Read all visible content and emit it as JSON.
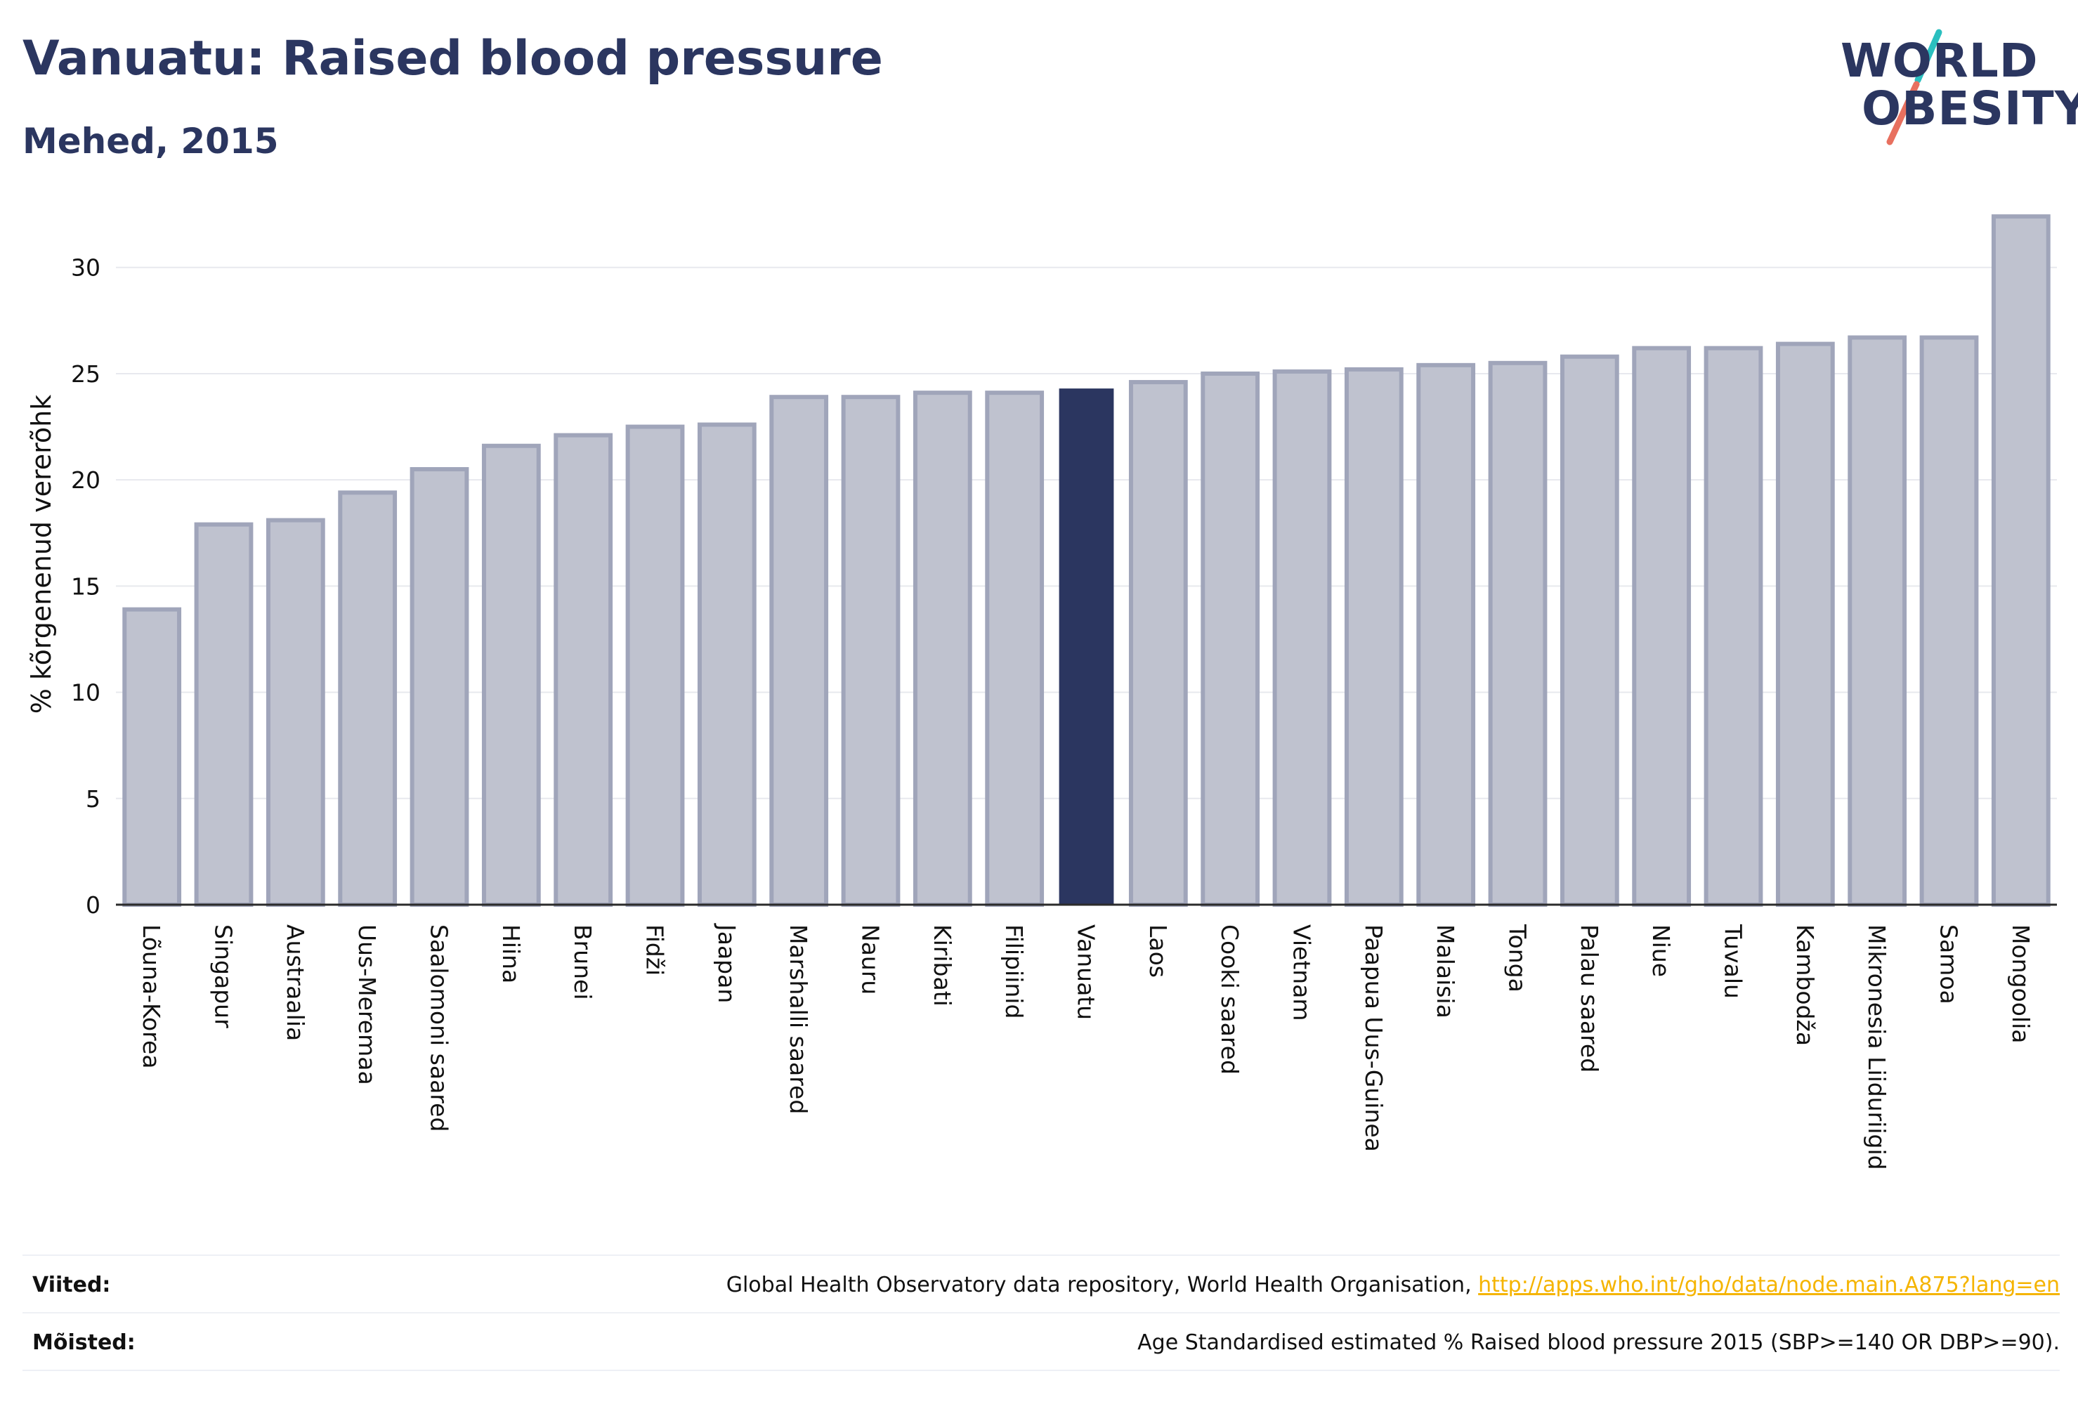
{
  "header": {
    "title": "Vanuatu: Raised blood pressure",
    "subtitle": "Mehed, 2015"
  },
  "logo": {
    "line1": "WORLD",
    "line2": "OBESITY"
  },
  "colors": {
    "highlight": "#2b3660",
    "bar_fill": "#bfc2cf",
    "bar_stroke": "#a0a5ba",
    "grid": "#e8e9ee",
    "accent_teal": "#2abfbf",
    "accent_red": "#e8705f"
  },
  "footer": {
    "sources_label": "Viited:",
    "sources_text": "Global Health Observatory data repository, World Health Organisation, ",
    "sources_link": "http://apps.who.int/gho/data/node.main.A875?lang=en",
    "definitions_label": "Mõisted:",
    "definitions_text": "Age Standardised estimated % Raised blood pressure 2015 (SBP>=140 OR DBP>=90)."
  },
  "chart_data": {
    "type": "bar",
    "ylabel": "% kõrgenenud vererõhk",
    "ylim": [
      0,
      33
    ],
    "yticks": [
      0,
      5,
      10,
      15,
      20,
      25,
      30
    ],
    "grid": true,
    "highlight": "Vanuatu",
    "categories": [
      "Lõuna-Korea",
      "Singapur",
      "Austraalia",
      "Uus-Meremaa",
      "Saalomoni saared",
      "Hiina",
      "Brunei",
      "Fidži",
      "Jaapan",
      "Marshalli saared",
      "Nauru",
      "Kiribati",
      "Filipiinid",
      "Vanuatu",
      "Laos",
      "Cooki saared",
      "Vietnam",
      "Paapua Uus-Guinea",
      "Malaisia",
      "Tonga",
      "Palau saared",
      "Niue",
      "Tuvalu",
      "Kambodža",
      "Mikronesia Liiduriigid",
      "Samoa",
      "Mongoolia"
    ],
    "values": [
      13.9,
      17.9,
      18.1,
      19.4,
      20.5,
      21.6,
      22.1,
      22.5,
      22.6,
      23.9,
      23.9,
      24.1,
      24.1,
      24.3,
      24.6,
      25.0,
      25.1,
      25.2,
      25.4,
      25.5,
      25.8,
      26.2,
      26.2,
      26.4,
      26.7,
      26.7,
      32.4
    ]
  }
}
